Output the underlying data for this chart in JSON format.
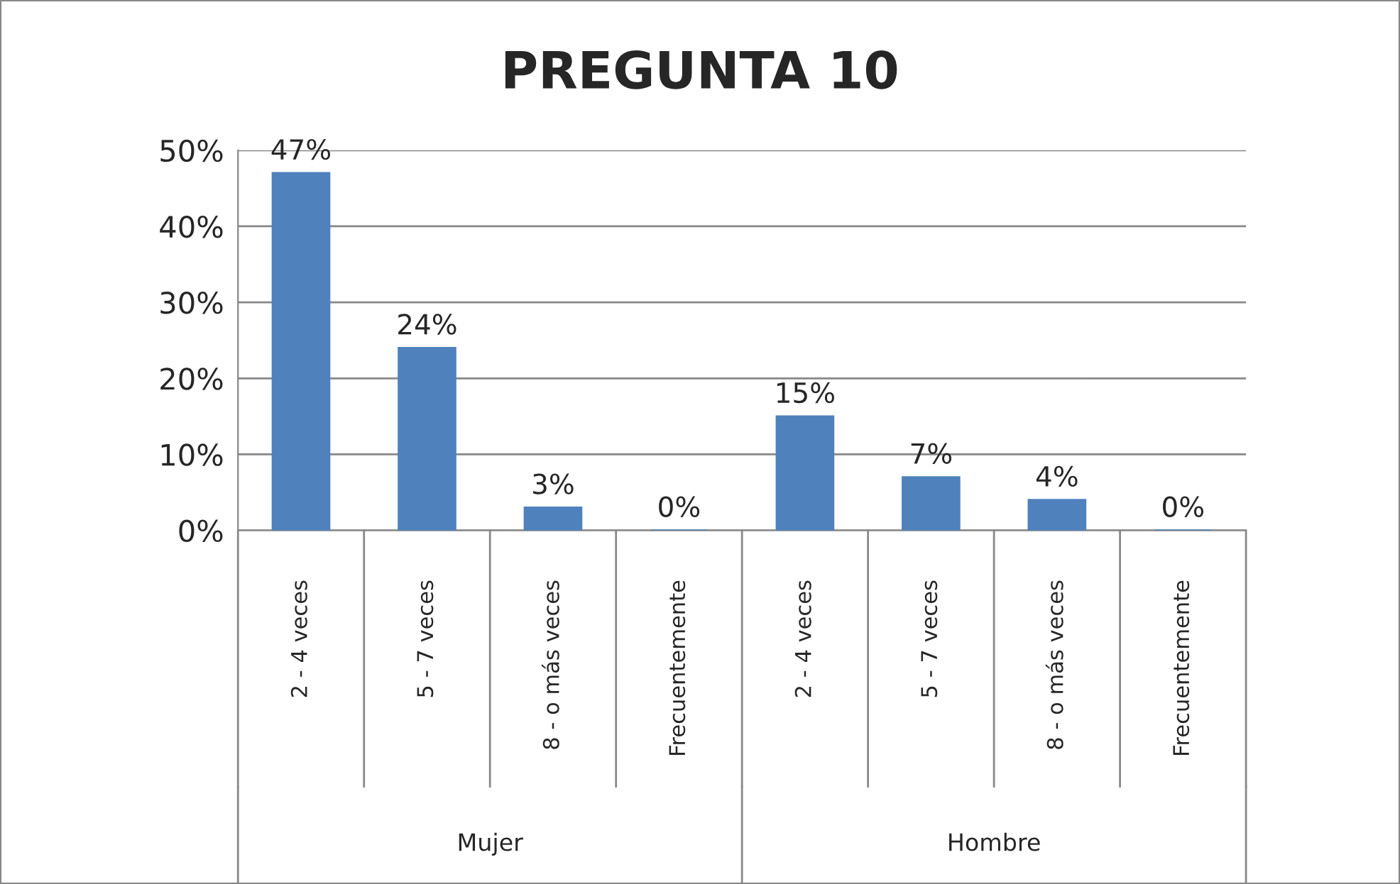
{
  "chart_data": {
    "type": "bar",
    "title": "PREGUNTA 10",
    "categories": [
      "2 - 4 veces",
      "5 - 7 veces",
      "8 - o más veces",
      "Frecuentemente",
      "2 - 4 veces",
      "5 - 7 veces",
      "8 - o más veces",
      "Frecuentemente"
    ],
    "values": [
      47,
      24,
      3,
      0,
      15,
      7,
      4,
      0
    ],
    "value_labels": [
      "47%",
      "24%",
      "3%",
      "0%",
      "15%",
      "7%",
      "4%",
      "0%"
    ],
    "color": "#4f81bd",
    "ylim": [
      0,
      50
    ],
    "yticks": [
      {
        "value": 0,
        "label": "0%"
      },
      {
        "value": 10,
        "label": "10%"
      },
      {
        "value": 20,
        "label": "20%"
      },
      {
        "value": 30,
        "label": "30%"
      },
      {
        "value": 40,
        "label": "40%"
      },
      {
        "value": 50,
        "label": "50%"
      }
    ],
    "grid": "y",
    "legend": false,
    "annotations": [
      "Mujer",
      "Hombre"
    ]
  }
}
